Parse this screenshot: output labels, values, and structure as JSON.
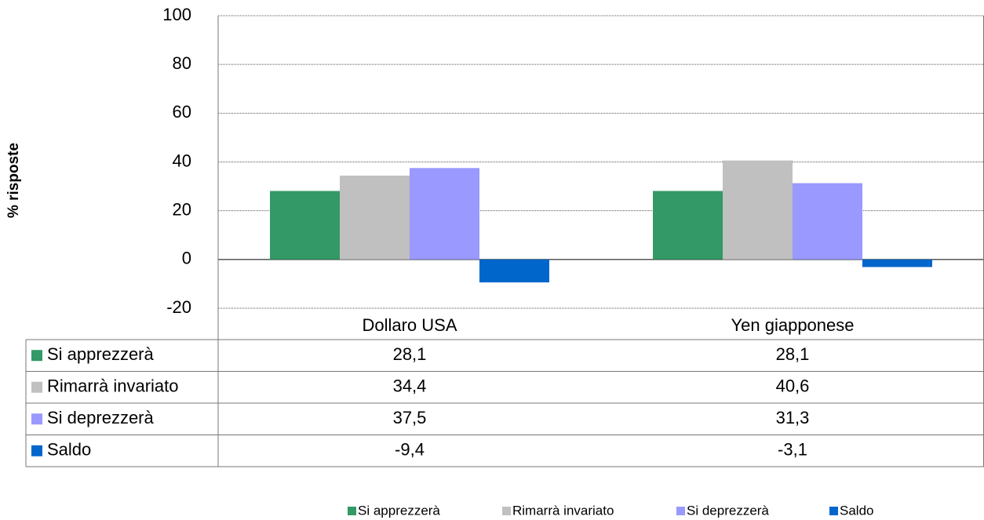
{
  "chart_data": {
    "type": "bar",
    "y_label": "% risposte",
    "categories": [
      "Dollaro USA",
      "Yen giapponese"
    ],
    "series": [
      {
        "name": "Si apprezzerà",
        "color": "#339966",
        "values": [
          28.1,
          28.1
        ],
        "value_labels": [
          "28,1",
          "28,1"
        ]
      },
      {
        "name": "Rimarrà invariato",
        "color": "#c0c0c0",
        "values": [
          34.4,
          40.6
        ],
        "value_labels": [
          "34,4",
          "40,6"
        ]
      },
      {
        "name": "Si deprezzerà",
        "color": "#9999ff",
        "values": [
          37.5,
          31.3
        ],
        "value_labels": [
          "37,5",
          "31,3"
        ]
      },
      {
        "name": "Saldo",
        "color": "#0066cc",
        "values": [
          -9.4,
          -3.1
        ],
        "value_labels": [
          "-9,4",
          "-3,1"
        ]
      }
    ],
    "ylim": [
      -20,
      100
    ],
    "yticks": [
      -20,
      0,
      20,
      40,
      60,
      80,
      100
    ],
    "grid": true,
    "legend": "bottom"
  }
}
